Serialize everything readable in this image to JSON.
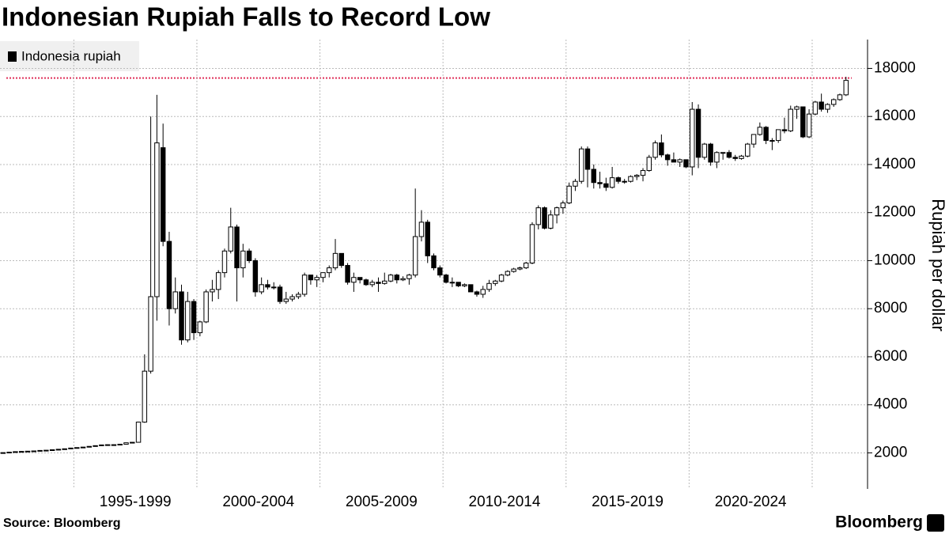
{
  "chart_data": {
    "type": "candlestick",
    "title": "Indonesian Rupiah Falls to Record Low",
    "series_name": "Indonesia rupiah",
    "color": "#000000",
    "y_label": "Rupiah per dollar",
    "source": "Source: Bloomberg",
    "brand": "Bloomberg",
    "ylim": [
      500,
      19200
    ],
    "yticks": [
      2000,
      4000,
      6000,
      8000,
      10000,
      12000,
      14000,
      16000,
      18000
    ],
    "grid": true,
    "legend": "upper left",
    "reference_line": {
      "value": 17600,
      "color": "#e0305a"
    },
    "groups": [
      {
        "label": null,
        "candles": [
          [
            1990,
            2015,
            1985,
            2010
          ],
          [
            2010,
            2035,
            2005,
            2030
          ],
          [
            2030,
            2055,
            2025,
            2050
          ],
          [
            2050,
            2065,
            2045,
            2060
          ],
          [
            2060,
            2075,
            2055,
            2070
          ],
          [
            2070,
            2085,
            2065,
            2080
          ],
          [
            2080,
            2105,
            2075,
            2100
          ],
          [
            2100,
            2115,
            2095,
            2110
          ],
          [
            2110,
            2135,
            2105,
            2130
          ],
          [
            2130,
            2155,
            2125,
            2150
          ],
          [
            2150,
            2175,
            2145,
            2170
          ],
          [
            2170,
            2205,
            2165,
            2200
          ]
        ]
      },
      {
        "label": "1995-1999",
        "candles": [
          [
            2200,
            2225,
            2195,
            2220
          ],
          [
            2220,
            2245,
            2215,
            2240
          ],
          [
            2240,
            2275,
            2235,
            2270
          ],
          [
            2270,
            2305,
            2265,
            2300
          ],
          [
            2300,
            2335,
            2295,
            2330
          ],
          [
            2330,
            2345,
            2325,
            2340
          ],
          [
            2340,
            2350,
            2330,
            2340
          ],
          [
            2340,
            2365,
            2335,
            2360
          ],
          [
            2360,
            2430,
            2355,
            2420
          ],
          [
            2420,
            2450,
            2410,
            2440
          ],
          [
            2440,
            3300,
            2430,
            3280
          ],
          [
            3280,
            6100,
            3250,
            5400
          ],
          [
            5400,
            16000,
            5300,
            8500
          ],
          [
            8500,
            16900,
            7500,
            14900
          ],
          [
            14700,
            15700,
            10600,
            10800
          ],
          [
            10800,
            11200,
            7300,
            8000
          ],
          [
            8000,
            9300,
            7800,
            8700
          ],
          [
            8700,
            9000,
            6500,
            6700
          ],
          [
            6700,
            8700,
            6600,
            8300
          ],
          [
            8300,
            8400,
            6700,
            7000
          ]
        ]
      },
      {
        "label": "2000-2004",
        "candles": [
          [
            7000,
            7500,
            6850,
            7450
          ],
          [
            7450,
            8800,
            7400,
            8700
          ],
          [
            8700,
            9200,
            8300,
            8800
          ],
          [
            8800,
            9600,
            8400,
            9500
          ],
          [
            9500,
            10500,
            9300,
            10400
          ],
          [
            10400,
            12200,
            10300,
            11400
          ],
          [
            11400,
            11500,
            8300,
            9700
          ],
          [
            9700,
            10700,
            9300,
            10400
          ],
          [
            10400,
            10500,
            9900,
            10000
          ],
          [
            10000,
            10100,
            8500,
            8700
          ],
          [
            8700,
            9300,
            8600,
            9000
          ],
          [
            9000,
            9200,
            8800,
            8900
          ],
          [
            8900,
            9100,
            8800,
            8900
          ],
          [
            8900,
            9000,
            8200,
            8300
          ],
          [
            8300,
            8700,
            8200,
            8400
          ],
          [
            8400,
            8600,
            8300,
            8500
          ],
          [
            8500,
            8700,
            8400,
            8600
          ],
          [
            8600,
            9500,
            8500,
            9400
          ],
          [
            9400,
            9400,
            9000,
            9200
          ],
          [
            9200,
            9400,
            8900,
            9300
          ]
        ]
      },
      {
        "label": "2005-2009",
        "candles": [
          [
            9300,
            9500,
            9100,
            9500
          ],
          [
            9500,
            9800,
            9300,
            9700
          ],
          [
            9700,
            10900,
            9600,
            10300
          ],
          [
            10300,
            10300,
            9700,
            9800
          ],
          [
            9800,
            9900,
            9000,
            9100
          ],
          [
            9100,
            9500,
            8700,
            9300
          ],
          [
            9300,
            9300,
            9050,
            9200
          ],
          [
            9200,
            9250,
            8950,
            9000
          ],
          [
            9000,
            9200,
            8900,
            9100
          ],
          [
            9100,
            9300,
            8700,
            9050
          ],
          [
            9050,
            9500,
            9000,
            9150
          ],
          [
            9150,
            9450,
            9100,
            9400
          ],
          [
            9400,
            9450,
            9050,
            9200
          ],
          [
            9200,
            9350,
            9150,
            9250
          ],
          [
            9250,
            9450,
            9000,
            9400
          ],
          [
            9400,
            13000,
            9300,
            11000
          ],
          [
            11000,
            12100,
            10800,
            11600
          ],
          [
            11600,
            11700,
            9900,
            10200
          ],
          [
            10200,
            10300,
            9600,
            9700
          ],
          [
            9700,
            9800,
            9300,
            9400
          ]
        ]
      },
      {
        "label": "2010-2014",
        "candles": [
          [
            9400,
            9450,
            9050,
            9100
          ],
          [
            9100,
            9300,
            8900,
            9100
          ],
          [
            9100,
            9100,
            8900,
            8950
          ],
          [
            8950,
            9050,
            8900,
            9000
          ],
          [
            9000,
            9000,
            8700,
            8700
          ],
          [
            8700,
            8750,
            8500,
            8600
          ],
          [
            8600,
            8950,
            8450,
            8800
          ],
          [
            8800,
            9200,
            8700,
            9050
          ],
          [
            9050,
            9200,
            8950,
            9150
          ],
          [
            9150,
            9450,
            9100,
            9400
          ],
          [
            9400,
            9600,
            9350,
            9550
          ],
          [
            9550,
            9700,
            9500,
            9650
          ],
          [
            9650,
            9750,
            9600,
            9700
          ],
          [
            9700,
            9950,
            9650,
            9900
          ],
          [
            9900,
            11600,
            9850,
            11500
          ],
          [
            11500,
            12300,
            11300,
            12200
          ],
          [
            12200,
            12250,
            11300,
            11350
          ],
          [
            11350,
            12100,
            11300,
            11900
          ],
          [
            11900,
            12250,
            11550,
            12200
          ],
          [
            12200,
            12500,
            11950,
            12400
          ]
        ]
      },
      {
        "label": "2015-2019",
        "candles": [
          [
            12400,
            13250,
            12350,
            13100
          ],
          [
            13100,
            13400,
            12900,
            13300
          ],
          [
            13300,
            14750,
            13200,
            14650
          ],
          [
            14650,
            14750,
            13050,
            13800
          ],
          [
            13800,
            14000,
            13000,
            13250
          ],
          [
            13250,
            13700,
            13000,
            13200
          ],
          [
            13200,
            13450,
            12900,
            13050
          ],
          [
            13050,
            13900,
            13000,
            13450
          ],
          [
            13450,
            13500,
            13200,
            13300
          ],
          [
            13300,
            13400,
            13200,
            13300
          ],
          [
            13300,
            13550,
            13250,
            13500
          ],
          [
            13500,
            13600,
            13350,
            13550
          ],
          [
            13550,
            13850,
            13300,
            13750
          ],
          [
            13750,
            14400,
            13700,
            14300
          ],
          [
            14300,
            15000,
            14200,
            14900
          ],
          [
            14900,
            15250,
            14300,
            14400
          ],
          [
            14400,
            14450,
            13950,
            14200
          ],
          [
            14200,
            14500,
            14100,
            14100
          ],
          [
            14100,
            14250,
            13900,
            14200
          ],
          [
            14200,
            14200,
            13850,
            13900
          ]
        ]
      },
      {
        "label": "2020-2024",
        "candles": [
          [
            13900,
            16600,
            13550,
            16300
          ],
          [
            16300,
            16500,
            13850,
            14300
          ],
          [
            14300,
            14900,
            14200,
            14850
          ],
          [
            14850,
            14900,
            13950,
            14100
          ],
          [
            14100,
            14550,
            13850,
            14500
          ],
          [
            14500,
            14500,
            14200,
            14500
          ],
          [
            14500,
            14600,
            14250,
            14300
          ],
          [
            14300,
            14400,
            14150,
            14250
          ],
          [
            14250,
            14400,
            14200,
            14350
          ],
          [
            14350,
            14900,
            14300,
            14850
          ],
          [
            14850,
            15250,
            14700,
            15250
          ],
          [
            15250,
            15750,
            15200,
            15550
          ],
          [
            15550,
            15600,
            14850,
            15000
          ],
          [
            15000,
            15100,
            14600,
            15000
          ],
          [
            15000,
            15450,
            14900,
            15450
          ],
          [
            15450,
            15950,
            15300,
            15400
          ],
          [
            15400,
            16450,
            15350,
            16300
          ],
          [
            16300,
            16450,
            15900,
            16400
          ],
          [
            16400,
            16400,
            15100,
            15150
          ],
          [
            15150,
            16300,
            15100,
            16100
          ]
        ]
      },
      {
        "label": null,
        "candles": [
          [
            16100,
            16650,
            16050,
            16600
          ],
          [
            16600,
            16950,
            16200,
            16300
          ],
          [
            16300,
            16550,
            16150,
            16500
          ],
          [
            16500,
            16750,
            16400,
            16700
          ],
          [
            16700,
            16950,
            16650,
            16900
          ],
          [
            16900,
            17650,
            16850,
            17500
          ]
        ]
      }
    ]
  }
}
